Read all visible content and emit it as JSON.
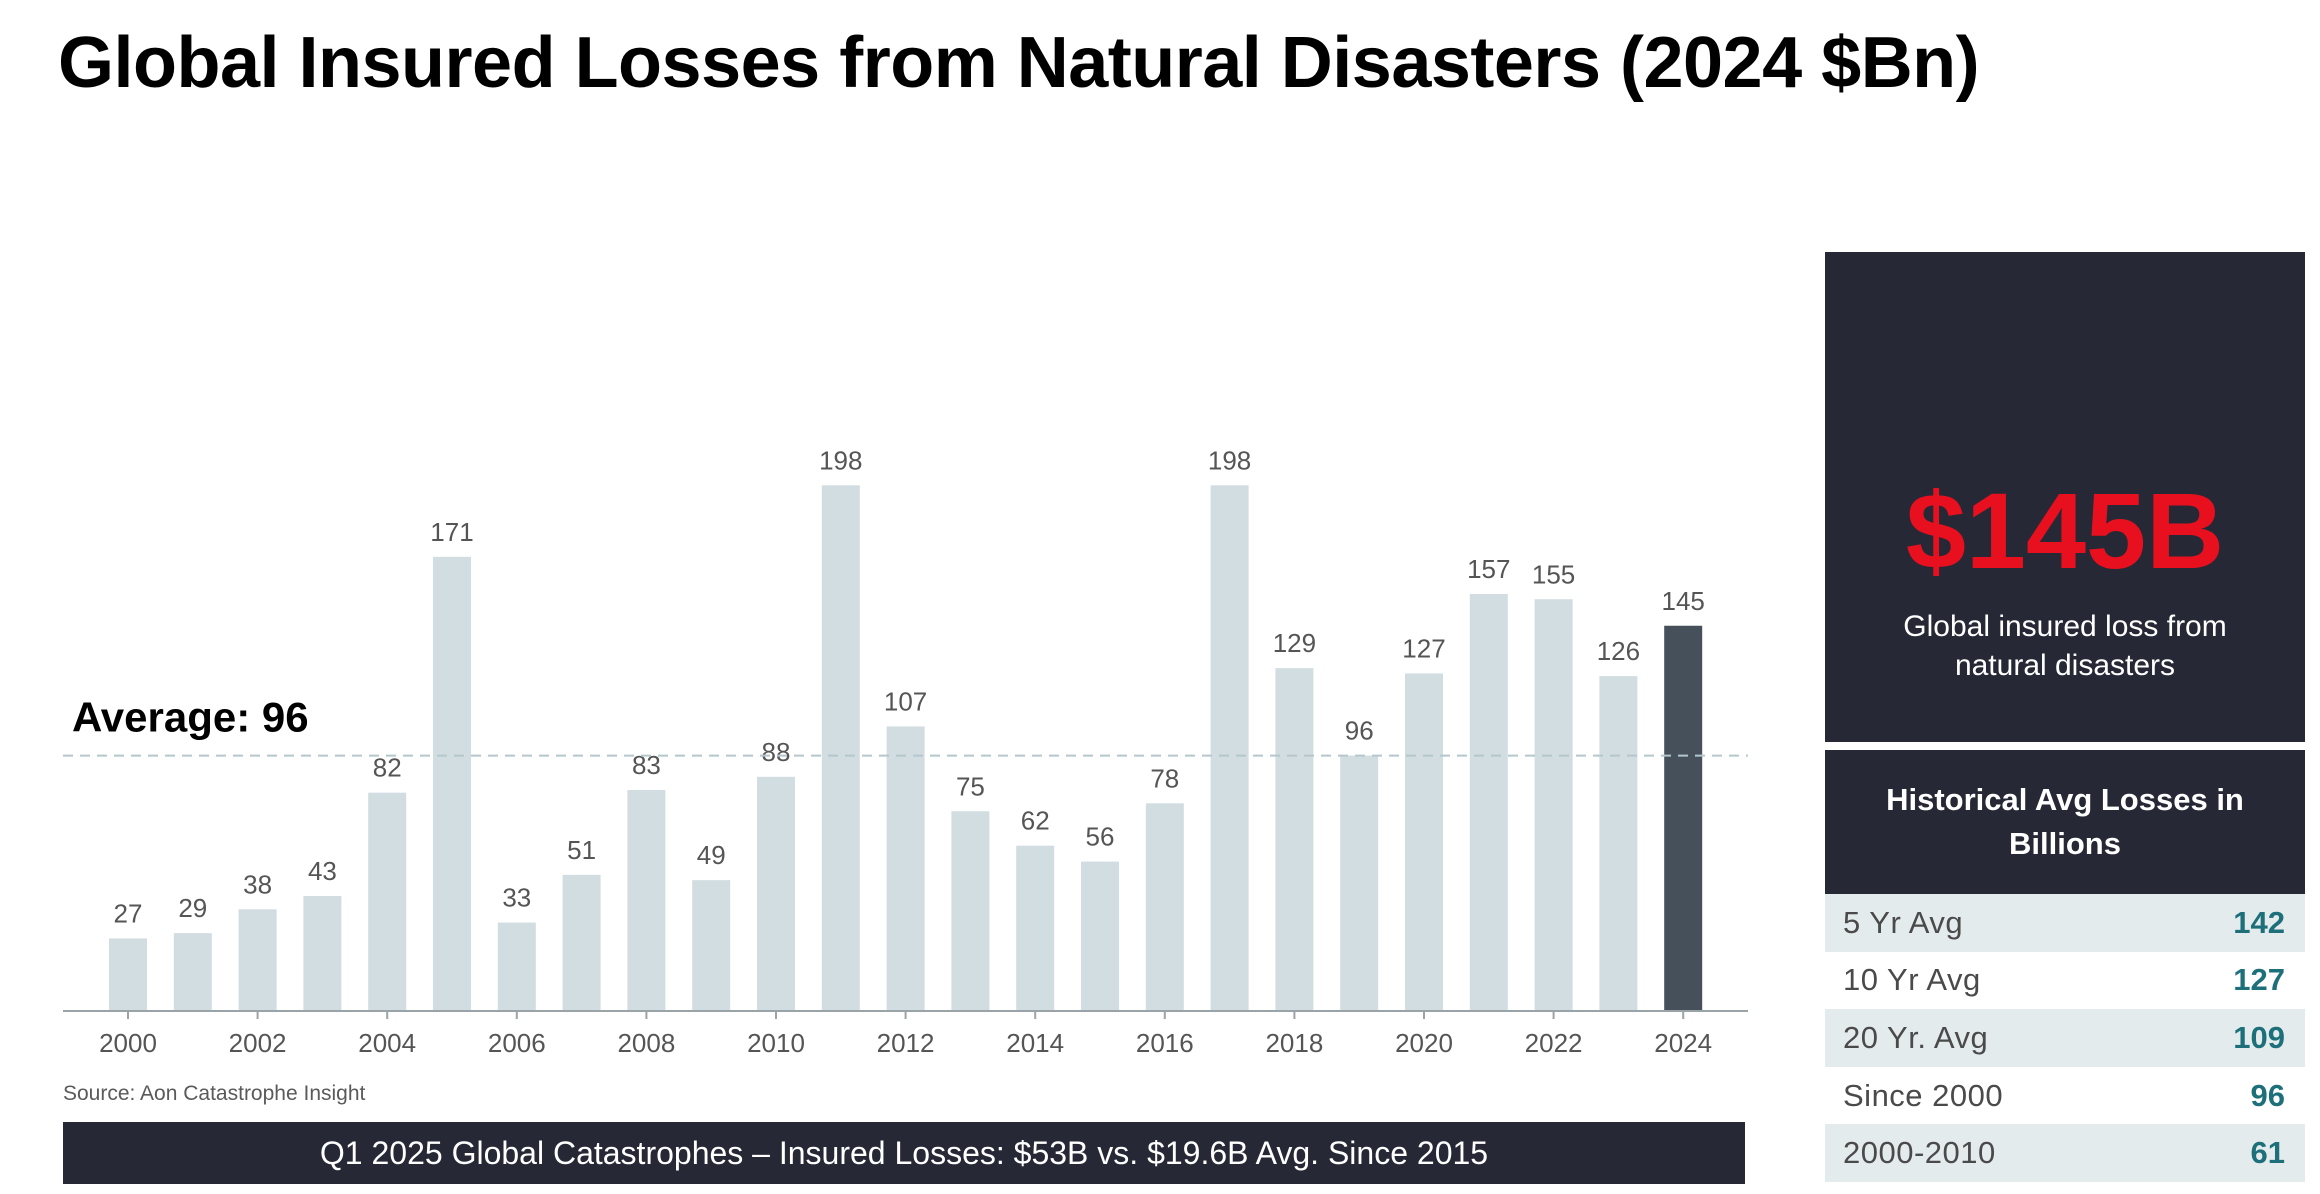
{
  "title": "Global Insured Losses from Natural Disasters (2024 $Bn)",
  "chart_data": {
    "type": "bar",
    "categories": [
      "2000",
      "2001",
      "2002",
      "2003",
      "2004",
      "2005",
      "2006",
      "2007",
      "2008",
      "2009",
      "2010",
      "2011",
      "2012",
      "2013",
      "2014",
      "2015",
      "2016",
      "2017",
      "2018",
      "2019",
      "2020",
      "2021",
      "2022",
      "2023",
      "2024"
    ],
    "values": [
      27,
      29,
      38,
      43,
      82,
      171,
      33,
      51,
      83,
      49,
      88,
      198,
      107,
      75,
      62,
      56,
      78,
      198,
      129,
      96,
      127,
      157,
      155,
      126,
      145
    ],
    "x_tick_labels": [
      "2000",
      "2002",
      "2004",
      "2006",
      "2008",
      "2010",
      "2012",
      "2014",
      "2016",
      "2018",
      "2020",
      "2022",
      "2024"
    ],
    "highlight_category": "2024",
    "average": {
      "label": "Average: 96",
      "value": 96
    },
    "ylim": [
      0,
      225
    ],
    "grid": false,
    "colors": {
      "bar": "#d1dde0",
      "highlight": "#45505a",
      "average_line": "#b5c7cc"
    }
  },
  "source": "Source: Aon Catastrophe Insight",
  "footer": "Q1 2025 Global Catastrophes – Insured Losses: $53B vs. $19.6B Avg. Since 2015",
  "panel": {
    "big_value": "$145B",
    "big_caption": "Global insured loss from natural disasters",
    "table_title": "Historical Avg Losses in Billions",
    "rows": [
      {
        "label": "5 Yr Avg",
        "value": "142"
      },
      {
        "label": "10 Yr Avg",
        "value": "127"
      },
      {
        "label": "20 Yr. Avg",
        "value": "109"
      },
      {
        "label": "Since 2000",
        "value": "96"
      },
      {
        "label": "2000-2010",
        "value": "61"
      }
    ]
  }
}
